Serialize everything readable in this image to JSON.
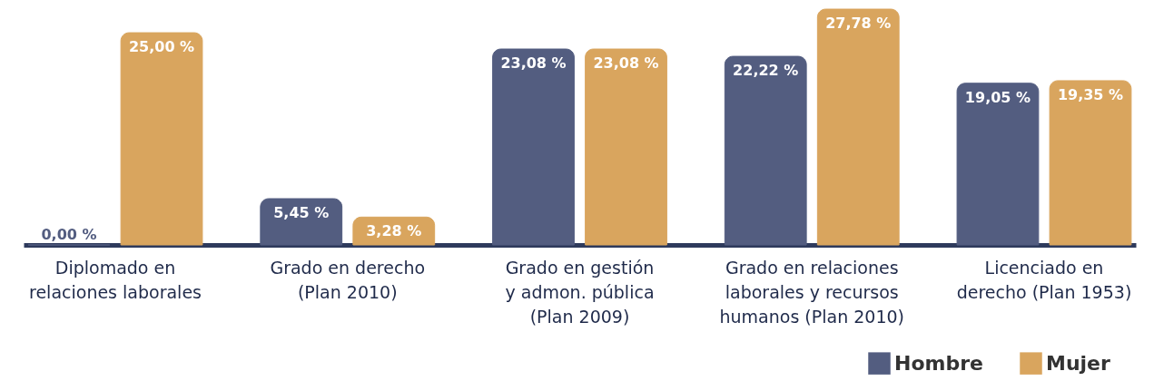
{
  "chart_data": {
    "type": "bar",
    "categories": [
      "Diplomado en relaciones laborales",
      "Grado en derecho (Plan 2010)",
      "Grado en gestión y admon. pública (Plan 2009)",
      "Grado en relaciones laborales y recursos humanos (Plan 2010)",
      "Licenciado en derecho (Plan 1953)"
    ],
    "series": [
      {
        "name": "Hombre",
        "color": "#535d80",
        "values": [
          0,
          5.45,
          23.08,
          22.22,
          19.05
        ],
        "value_labels": [
          "0,00 %",
          "5,45 %",
          "23,08 %",
          "22,22 %",
          "19,05 %"
        ]
      },
      {
        "name": "Mujer",
        "color": "#d9a55e",
        "values": [
          25,
          3.28,
          23.08,
          27.78,
          19.35
        ],
        "value_labels": [
          "25,00 %",
          "3,28 %",
          "23,08 %",
          "27,78 %",
          "19,35 %"
        ]
      }
    ],
    "legend": "bottom right"
  }
}
